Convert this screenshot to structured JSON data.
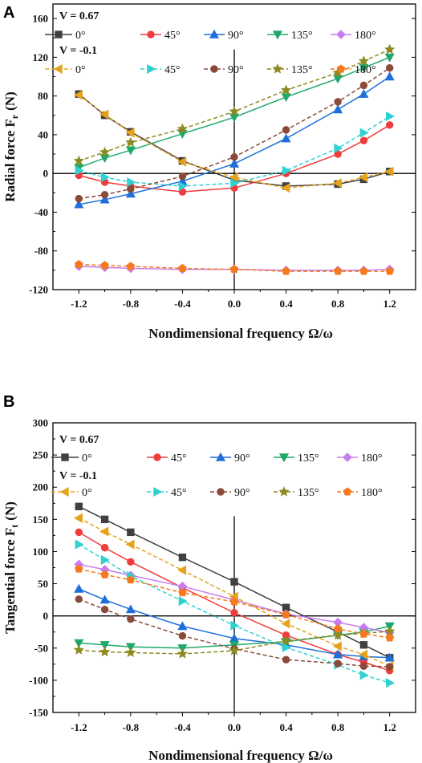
{
  "chart_data": [
    {
      "type": "line",
      "panel_label": "A",
      "xlabel": "Nondimensional frequency  Ω/ω",
      "ylabel": "Radial force F",
      "ylabel_sub": "r",
      "ylabel_unit": "(N)",
      "x": [
        -1.2,
        -1.0,
        -0.8,
        -0.4,
        0.0,
        0.4,
        0.8,
        1.0,
        1.2
      ],
      "xticks": [
        "-1.2",
        "-0.8",
        "-0.4",
        "0.0",
        "0.4",
        "0.8",
        "1.2"
      ],
      "yticks": [
        "160",
        "120",
        "80",
        "40",
        "0",
        "-40",
        "-80",
        "-120"
      ],
      "xlim": [
        -1.4,
        1.4
      ],
      "ylim": [
        -120,
        175
      ],
      "legend_groups": [
        "V = 0.67",
        "V = -0.1"
      ],
      "series": [
        {
          "name": "0°",
          "group": 0,
          "color": "#404040",
          "dashed": false,
          "marker": "square",
          "values": [
            82,
            60,
            43,
            13,
            -7,
            -13,
            -11,
            -6,
            2
          ]
        },
        {
          "name": "45°",
          "group": 0,
          "color": "#f03c3c",
          "dashed": false,
          "marker": "circle",
          "values": [
            -2,
            -9,
            -13,
            -19,
            -15,
            0,
            20,
            34,
            50
          ]
        },
        {
          "name": "90°",
          "group": 0,
          "color": "#1e6fd9",
          "dashed": false,
          "marker": "triangle-up",
          "values": [
            -32,
            -27,
            -21,
            -8,
            10,
            36,
            66,
            82,
            100
          ]
        },
        {
          "name": "135°",
          "group": 0,
          "color": "#1fa86a",
          "dashed": false,
          "marker": "triangle-down",
          "values": [
            6,
            16,
            24,
            41,
            58,
            79,
            98,
            109,
            120
          ]
        },
        {
          "name": "180°",
          "group": 0,
          "color": "#c77cf0",
          "dashed": false,
          "marker": "diamond",
          "values": [
            -96,
            -97,
            -98,
            -99,
            -99,
            -100,
            -100,
            -100,
            -99
          ]
        },
        {
          "name": "0°",
          "group": 1,
          "color": "#e5a21c",
          "dashed": true,
          "marker": "triangle-left",
          "values": [
            81,
            61,
            42,
            12,
            -4,
            -15,
            -10,
            -4,
            2
          ]
        },
        {
          "name": "45°",
          "group": 1,
          "color": "#2fd1d1",
          "dashed": true,
          "marker": "triangle-right",
          "values": [
            3,
            -4,
            -9,
            -13,
            -10,
            3,
            26,
            42,
            59
          ]
        },
        {
          "name": "90°",
          "group": 1,
          "color": "#8a4a3a",
          "dashed": true,
          "marker": "circle",
          "values": [
            -26,
            -22,
            -16,
            -3,
            17,
            45,
            74,
            91,
            109
          ]
        },
        {
          "name": "135°",
          "group": 1,
          "color": "#8c8a20",
          "dashed": true,
          "marker": "star",
          "values": [
            13,
            22,
            32,
            46,
            64,
            86,
            104,
            116,
            128
          ]
        },
        {
          "name": "180°",
          "group": 1,
          "color": "#f57a1f",
          "dashed": true,
          "marker": "pentagon",
          "values": [
            -94,
            -95,
            -96,
            -98,
            -99,
            -101,
            -101,
            -101,
            -101
          ]
        }
      ]
    },
    {
      "type": "line",
      "panel_label": "B",
      "xlabel": "Nondimensional frequency  Ω/ω",
      "ylabel": "Tangential force F",
      "ylabel_sub": "t",
      "ylabel_unit": "(N)",
      "x": [
        -1.2,
        -1.0,
        -0.8,
        -0.4,
        0.0,
        0.4,
        0.8,
        1.0,
        1.2
      ],
      "xticks": [
        "-1.2",
        "-0.8",
        "-0.4",
        "0.0",
        "0.4",
        "0.8",
        "1.2"
      ],
      "yticks": [
        "300",
        "250",
        "200",
        "150",
        "100",
        "50",
        "0",
        "-50",
        "-100",
        "-150"
      ],
      "xlim": [
        -1.4,
        1.4
      ],
      "ylim": [
        -150,
        300
      ],
      "legend_groups": [
        "V = 0.67",
        "V = -0.1"
      ],
      "series": [
        {
          "name": "0°",
          "group": 0,
          "color": "#404040",
          "dashed": false,
          "marker": "square",
          "values": [
            170,
            150,
            130,
            91,
            53,
            13,
            -25,
            -45,
            -65
          ]
        },
        {
          "name": "45°",
          "group": 0,
          "color": "#f03c3c",
          "dashed": false,
          "marker": "circle",
          "values": [
            130,
            106,
            84,
            44,
            5,
            -30,
            -60,
            -72,
            -85
          ]
        },
        {
          "name": "90°",
          "group": 0,
          "color": "#1e6fd9",
          "dashed": false,
          "marker": "triangle-up",
          "values": [
            42,
            25,
            10,
            -16,
            -35,
            -45,
            -60,
            -63,
            -65
          ]
        },
        {
          "name": "135°",
          "group": 0,
          "color": "#1fa86a",
          "dashed": false,
          "marker": "triangle-down",
          "values": [
            -42,
            -45,
            -48,
            -50,
            -45,
            -40,
            -30,
            -25,
            -16
          ]
        },
        {
          "name": "180°",
          "group": 0,
          "color": "#c77cf0",
          "dashed": false,
          "marker": "diamond",
          "values": [
            80,
            72,
            63,
            46,
            25,
            3,
            -10,
            -18,
            -26
          ]
        },
        {
          "name": "0°",
          "group": 1,
          "color": "#e5a21c",
          "dashed": true,
          "marker": "triangle-left",
          "values": [
            152,
            131,
            111,
            71,
            30,
            -12,
            -47,
            -60,
            -78
          ]
        },
        {
          "name": "45°",
          "group": 1,
          "color": "#2fd1d1",
          "dashed": true,
          "marker": "triangle-right",
          "values": [
            111,
            87,
            62,
            23,
            -15,
            -49,
            -76,
            -92,
            -104
          ]
        },
        {
          "name": "90°",
          "group": 1,
          "color": "#8a4a3a",
          "dashed": true,
          "marker": "circle",
          "values": [
            26,
            10,
            -5,
            -31,
            -51,
            -68,
            -74,
            -78,
            -79
          ]
        },
        {
          "name": "135°",
          "group": 1,
          "color": "#8c8a20",
          "dashed": true,
          "marker": "star",
          "values": [
            -53,
            -56,
            -57,
            -59,
            -54,
            -39,
            -30,
            -27,
            -24
          ]
        },
        {
          "name": "180°",
          "group": 1,
          "color": "#f57a1f",
          "dashed": true,
          "marker": "pentagon",
          "values": [
            73,
            64,
            56,
            36,
            22,
            2,
            -20,
            -28,
            -34
          ]
        }
      ]
    }
  ]
}
